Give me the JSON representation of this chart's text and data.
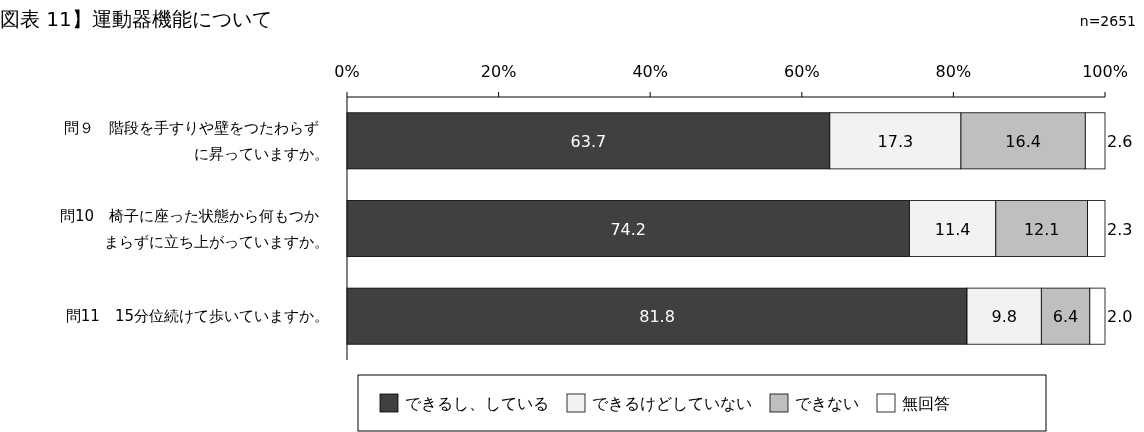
{
  "chart_data": {
    "type": "bar",
    "orientation": "horizontal",
    "stacked": true,
    "title": "図表 11】運動器機能について",
    "annotations": [
      "n=2651"
    ],
    "categories": [
      "問９　階段を手すりや壁をつたわらずに昇っていますか。",
      "問10　椅子に座った状態から何もつかまらずに立ち上がっていますか。",
      "問11　15分位続けて歩いていますか。"
    ],
    "series": [
      {
        "name": "できるし、している",
        "color": "#404040",
        "values": [
          63.7,
          74.2,
          81.8
        ],
        "value_labels": [
          "63.7",
          "74.2",
          "81.8"
        ]
      },
      {
        "name": "できるけどしていない",
        "color": "#f2f2f2",
        "values": [
          17.3,
          11.4,
          9.8
        ],
        "value_labels": [
          "17.3",
          "11.4",
          "9.8"
        ]
      },
      {
        "name": "できない",
        "color": "#bfbfbf",
        "values": [
          16.4,
          12.1,
          6.4
        ],
        "value_labels": [
          "16.4",
          "12.1",
          "6.4"
        ]
      },
      {
        "name": "無回答",
        "color": "#ffffff",
        "values": [
          2.6,
          2.3,
          2.0
        ],
        "value_labels": [
          "2.6",
          "2.3",
          "2.0"
        ]
      }
    ],
    "xlim": [
      0,
      100
    ],
    "xticks": [
      {
        "value": 0,
        "label": "0%"
      },
      {
        "value": 20,
        "label": "20%"
      },
      {
        "value": 40,
        "label": "40%"
      },
      {
        "value": 60,
        "label": "60%"
      },
      {
        "value": 80,
        "label": "80%"
      },
      {
        "value": 100,
        "label": "100%"
      }
    ],
    "legend": "bottom",
    "grid": false
  }
}
